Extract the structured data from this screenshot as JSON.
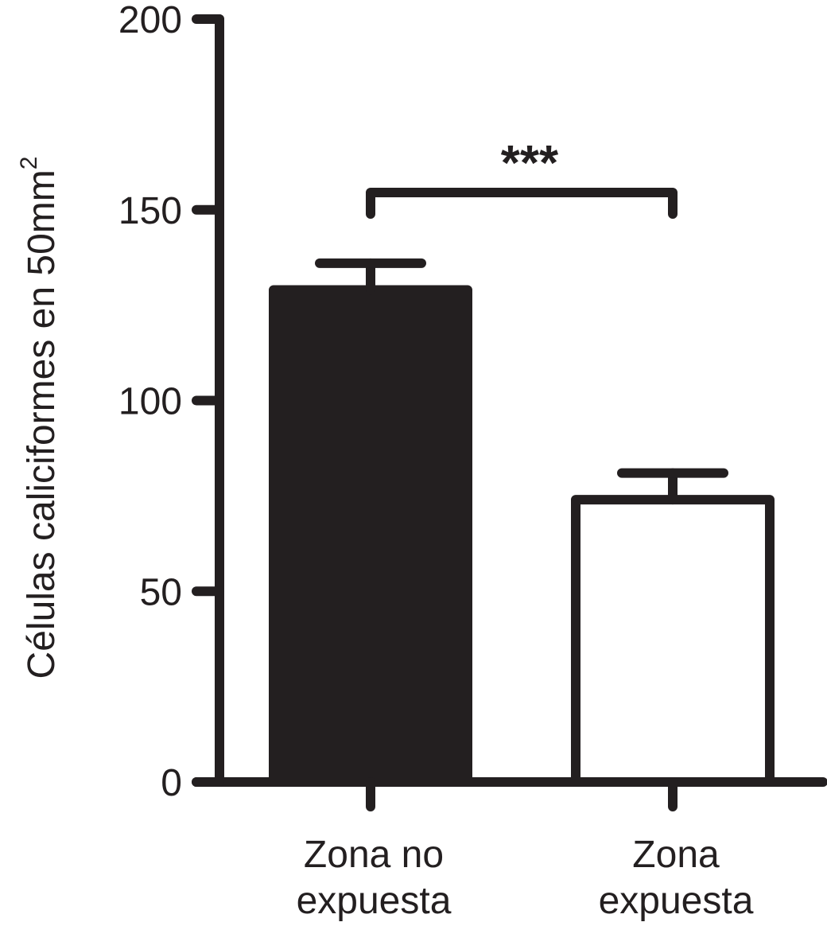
{
  "chart_data": {
    "type": "bar",
    "ylabel": "Células caliciformes en 50mm",
    "ylabel_superscript": "2",
    "ylim": [
      0,
      200
    ],
    "yticks": [
      0,
      50,
      100,
      150,
      200
    ],
    "categories": [
      {
        "line1": "Zona no",
        "line2": "expuesta"
      },
      {
        "line1": "Zona",
        "line2": "expuesta"
      }
    ],
    "values": [
      129,
      74
    ],
    "errors": [
      7,
      7
    ],
    "bar_fills": [
      "#231f20",
      "#ffffff"
    ],
    "significance": {
      "from": 0,
      "to": 1,
      "label": "***"
    },
    "colors": {
      "ink": "#231f20",
      "background": "#ffffff"
    }
  }
}
